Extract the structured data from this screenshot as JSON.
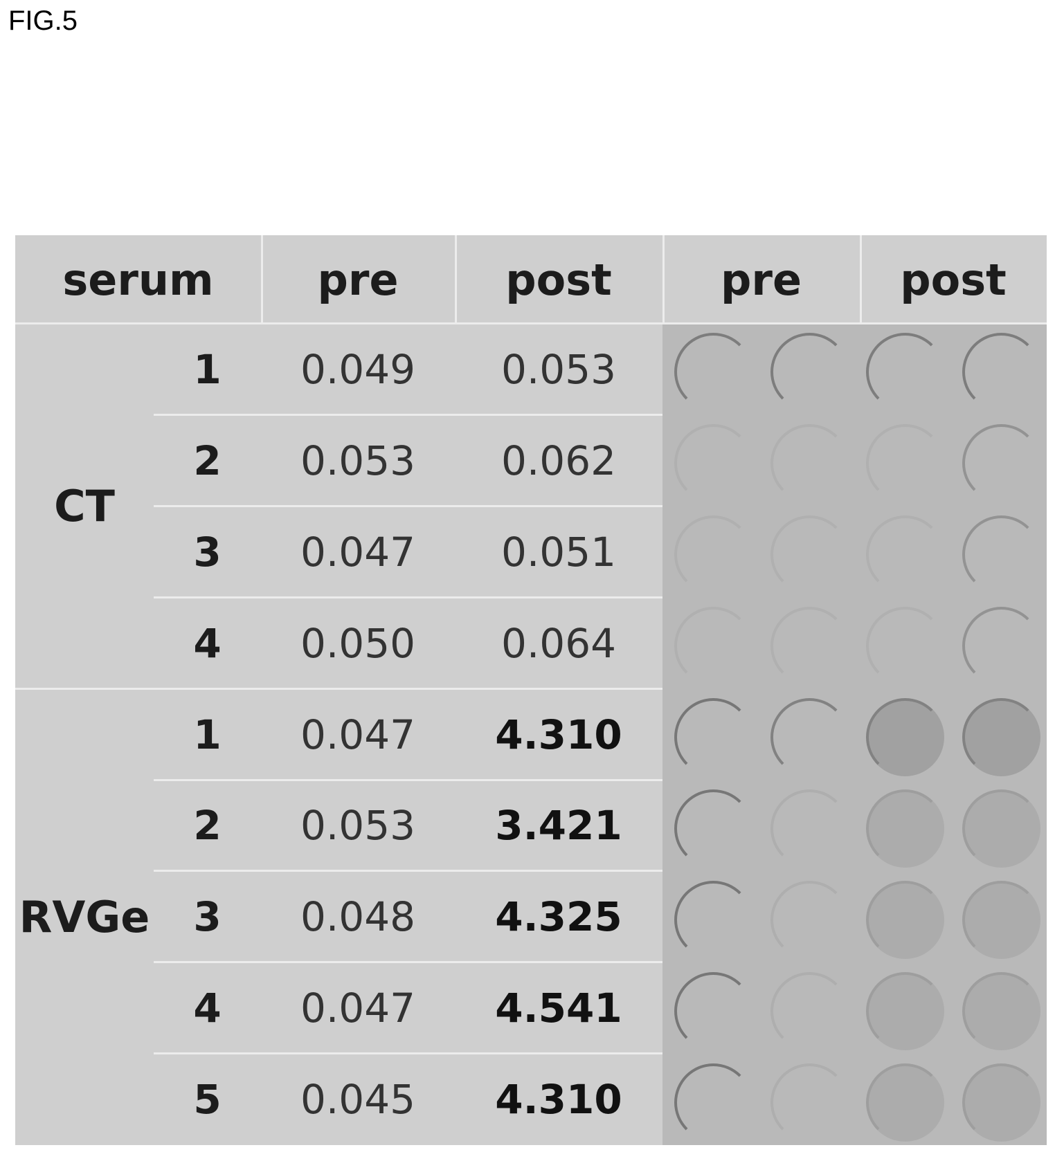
{
  "figure_label": "FIG.5",
  "header": {
    "serum": "serum",
    "pre": "pre",
    "post": "post",
    "blot_pre": "pre",
    "blot_post": "post"
  },
  "groups": [
    {
      "name": "CT",
      "rows": [
        {
          "id": "1",
          "pre": "0.049",
          "post": "0.053",
          "post_bold": false
        },
        {
          "id": "2",
          "pre": "0.053",
          "post": "0.062",
          "post_bold": false
        },
        {
          "id": "3",
          "pre": "0.047",
          "post": "0.051",
          "post_bold": false
        },
        {
          "id": "4",
          "pre": "0.050",
          "post": "0.064",
          "post_bold": false
        }
      ]
    },
    {
      "name": "RVGe",
      "rows": [
        {
          "id": "1",
          "pre": "0.047",
          "post": "4.310",
          "post_bold": true
        },
        {
          "id": "2",
          "pre": "0.053",
          "post": "3.421",
          "post_bold": true
        },
        {
          "id": "3",
          "pre": "0.048",
          "post": "4.325",
          "post_bold": true
        },
        {
          "id": "4",
          "pre": "0.047",
          "post": "4.541",
          "post_bold": true
        },
        {
          "id": "5",
          "pre": "0.045",
          "post": "4.310",
          "post_bold": true
        }
      ]
    }
  ]
}
